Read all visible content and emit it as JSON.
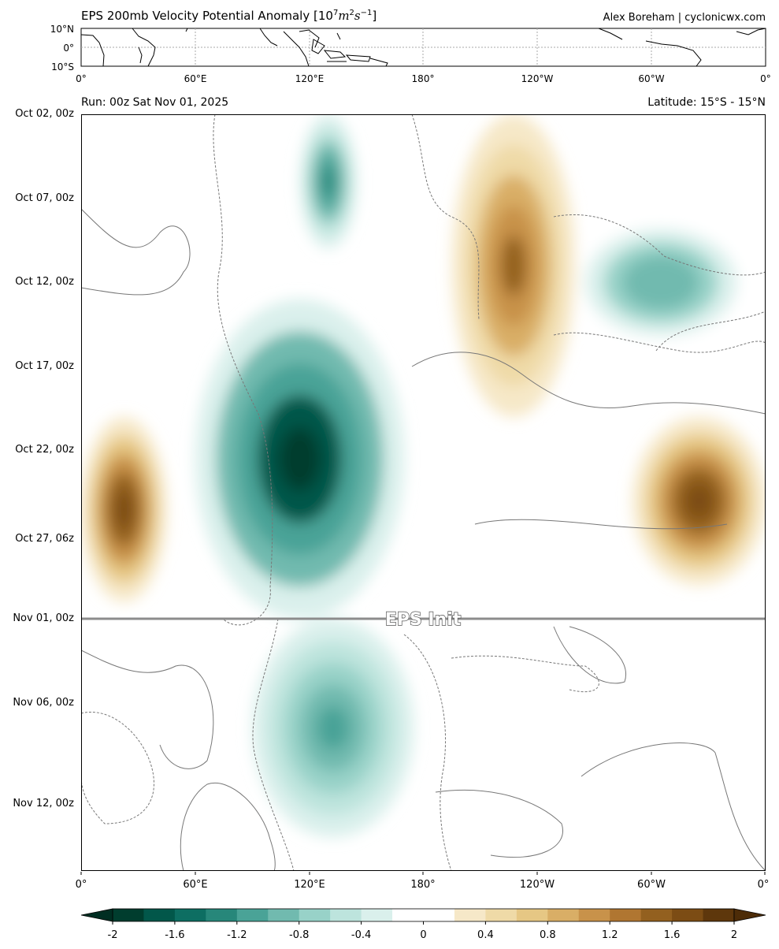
{
  "header": {
    "title_prefix": "EPS 200mb Velocity Potential Anomaly [10",
    "title_sup1": "7",
    "title_unit": "m",
    "title_sup2": "2",
    "title_s": "s",
    "title_sup3": "−1",
    "title_suffix": "]",
    "credit": "Alex Boreham | cyclonicwx.com"
  },
  "map_panel": {
    "lat_ticks": [
      "10°N",
      "0°",
      "10°S"
    ],
    "lon_ticks": [
      "0°",
      "60°E",
      "120°E",
      "180°",
      "120°W",
      "60°W",
      "0°"
    ]
  },
  "main_panel": {
    "run_label": "Run: 00z Sat Nov 01, 2025",
    "latitude_label": "Latitude: 15°S - 15°N",
    "init_label": "EPS Init",
    "y_ticks": [
      "Oct 02, 00z",
      "Oct 07, 00z",
      "Oct 12, 00z",
      "Oct 17, 00z",
      "Oct 22, 00z",
      "Oct 27, 06z",
      "Nov 01, 00z",
      "Nov 06, 00z",
      "Nov 12, 00z"
    ],
    "x_ticks": [
      "0°",
      "60°E",
      "120°E",
      "180°",
      "120°W",
      "60°W",
      "0°"
    ]
  },
  "colorbar": {
    "tick_labels": [
      "-2",
      "-1.6",
      "-1.2",
      "-0.8",
      "-0.4",
      "0",
      "0.4",
      "0.8",
      "1.2",
      "1.6",
      "2"
    ],
    "colors": [
      "#003d2e",
      "#02574a",
      "#0d6e62",
      "#27877a",
      "#4aa397",
      "#71baaf",
      "#98d2c8",
      "#bde4dd",
      "#daf0ec",
      "#ffffff",
      "#ffffff",
      "#f6e8c8",
      "#efdaa7",
      "#e6c784",
      "#d9ae66",
      "#c8924a",
      "#b07631",
      "#93601f",
      "#7c4c14",
      "#5e370c"
    ]
  },
  "chart_data": {
    "type": "heatmap",
    "title": "EPS 200mb Velocity Potential Anomaly [10^7 m^2 s^-1]",
    "subtitle_left": "Run: 00z Sat Nov 01, 2025",
    "subtitle_right": "Latitude: 15°S - 15°N",
    "x_axis": "longitude",
    "x_ticks": [
      "0°",
      "60°E",
      "120°E",
      "180°",
      "120°W",
      "60°W",
      "0°"
    ],
    "y_axis": "time",
    "y_ticks": [
      "Oct 02, 00z",
      "Oct 07, 00z",
      "Oct 12, 00z",
      "Oct 17, 00z",
      "Oct 22, 00z",
      "Oct 27, 06z",
      "Nov 01, 00z",
      "Nov 06, 00z",
      "Nov 12, 00z"
    ],
    "init_line": {
      "time": "Nov 01, 00z",
      "label": "EPS Init"
    },
    "colorbar_range": [
      -2,
      2
    ],
    "colorbar_step": 0.2,
    "features": [
      {
        "sign": "negative",
        "description": "divergent region",
        "lon_deg": [
          115,
          145
        ],
        "time": [
          "Oct 02, 00z",
          "Oct 10, 00z"
        ],
        "min_value": -1.4
      },
      {
        "sign": "negative",
        "description": "strongest divergent region",
        "lon_deg": [
          60,
          170
        ],
        "time": [
          "Oct 13, 00z",
          "Nov 01, 00z"
        ],
        "min_value": -2.0
      },
      {
        "sign": "negative",
        "description": "forecast divergent region",
        "lon_deg": [
          90,
          175
        ],
        "time": [
          "Nov 01, 00z",
          "Nov 14, 00z"
        ],
        "min_value": -1.2
      },
      {
        "sign": "negative",
        "description": "western hemisphere divergent region",
        "lon_deg": [
          255,
          355
        ],
        "time": [
          "Oct 08, 00z",
          "Oct 16, 00z"
        ],
        "min_value": -1.0
      },
      {
        "sign": "positive",
        "description": "eastern Pacific convergent band",
        "lon_deg": [
          195,
          260
        ],
        "time": [
          "Oct 02, 00z",
          "Oct 20, 00z"
        ],
        "max_value": 1.4
      },
      {
        "sign": "positive",
        "description": "Africa convergent region",
        "lon_deg": [
          0,
          45
        ],
        "time": [
          "Oct 20, 00z",
          "Oct 31, 00z"
        ],
        "max_value": 1.8
      },
      {
        "sign": "positive",
        "description": "Atlantic convergent region",
        "lon_deg": [
          290,
          360
        ],
        "time": [
          "Oct 20, 00z",
          "Oct 30, 00z"
        ],
        "max_value": 1.8
      }
    ]
  }
}
